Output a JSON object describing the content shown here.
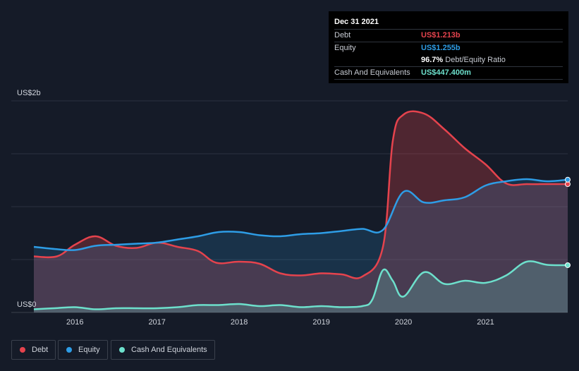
{
  "tooltip": {
    "date": "Dec 31 2021",
    "debt_label": "Debt",
    "debt_value": "US$1.213b",
    "equity_label": "Equity",
    "equity_value": "US$1.255b",
    "ratio_value": "96.7%",
    "ratio_label": "Debt/Equity Ratio",
    "cash_label": "Cash And Equivalents",
    "cash_value": "US$447.400m"
  },
  "legend": {
    "debt": "Debt",
    "equity": "Equity",
    "cash": "Cash And Equivalents"
  },
  "colors": {
    "debt": "#e5434d",
    "equity": "#2e9de6",
    "cash": "#6de0cc",
    "background": "#151b28",
    "grid": "#2c3240"
  },
  "chart_data": {
    "type": "area",
    "y_top_label": "US$2b",
    "y_bottom_label": "US$0",
    "ylim": [
      0,
      2.0
    ],
    "x_ticks": [
      "2016",
      "2017",
      "2018",
      "2019",
      "2020",
      "2021"
    ],
    "xlim": [
      2015.5,
      2022.0
    ],
    "series": [
      {
        "name": "Debt",
        "x": [
          2015.5,
          2015.78,
          2016.0,
          2016.25,
          2016.5,
          2016.75,
          2017.0,
          2017.25,
          2017.5,
          2017.72,
          2018.0,
          2018.25,
          2018.5,
          2018.75,
          2019.0,
          2019.25,
          2019.5,
          2019.75,
          2019.87,
          2020.0,
          2020.25,
          2020.5,
          2020.75,
          2021.0,
          2021.25,
          2021.5,
          2021.75,
          2022.0
        ],
        "y": [
          0.53,
          0.53,
          0.64,
          0.72,
          0.63,
          0.61,
          0.66,
          0.62,
          0.58,
          0.47,
          0.48,
          0.46,
          0.37,
          0.35,
          0.37,
          0.36,
          0.34,
          0.62,
          1.62,
          1.87,
          1.88,
          1.73,
          1.55,
          1.4,
          1.22,
          1.213,
          1.213,
          1.213
        ]
      },
      {
        "name": "Equity",
        "x": [
          2015.5,
          2015.75,
          2016.0,
          2016.25,
          2016.5,
          2016.75,
          2017.0,
          2017.25,
          2017.5,
          2017.75,
          2018.0,
          2018.25,
          2018.5,
          2018.75,
          2019.0,
          2019.25,
          2019.5,
          2019.75,
          2020.0,
          2020.25,
          2020.5,
          2020.75,
          2021.0,
          2021.25,
          2021.5,
          2021.75,
          2022.0
        ],
        "y": [
          0.62,
          0.6,
          0.59,
          0.63,
          0.64,
          0.65,
          0.66,
          0.69,
          0.72,
          0.76,
          0.76,
          0.73,
          0.72,
          0.74,
          0.75,
          0.77,
          0.79,
          0.78,
          1.14,
          1.04,
          1.06,
          1.09,
          1.2,
          1.24,
          1.26,
          1.24,
          1.255
        ]
      },
      {
        "name": "Cash And Equivalents",
        "x": [
          2015.5,
          2015.75,
          2016.0,
          2016.25,
          2016.5,
          2016.75,
          2017.0,
          2017.25,
          2017.5,
          2017.75,
          2018.0,
          2018.25,
          2018.5,
          2018.75,
          2019.0,
          2019.25,
          2019.5,
          2019.62,
          2019.75,
          2019.87,
          2020.0,
          2020.25,
          2020.5,
          2020.75,
          2021.0,
          2021.25,
          2021.5,
          2021.75,
          2022.0
        ],
        "y": [
          0.03,
          0.04,
          0.05,
          0.03,
          0.04,
          0.04,
          0.04,
          0.05,
          0.07,
          0.07,
          0.08,
          0.06,
          0.07,
          0.05,
          0.06,
          0.05,
          0.06,
          0.12,
          0.4,
          0.3,
          0.15,
          0.38,
          0.27,
          0.3,
          0.28,
          0.35,
          0.48,
          0.45,
          0.447
        ]
      }
    ]
  }
}
